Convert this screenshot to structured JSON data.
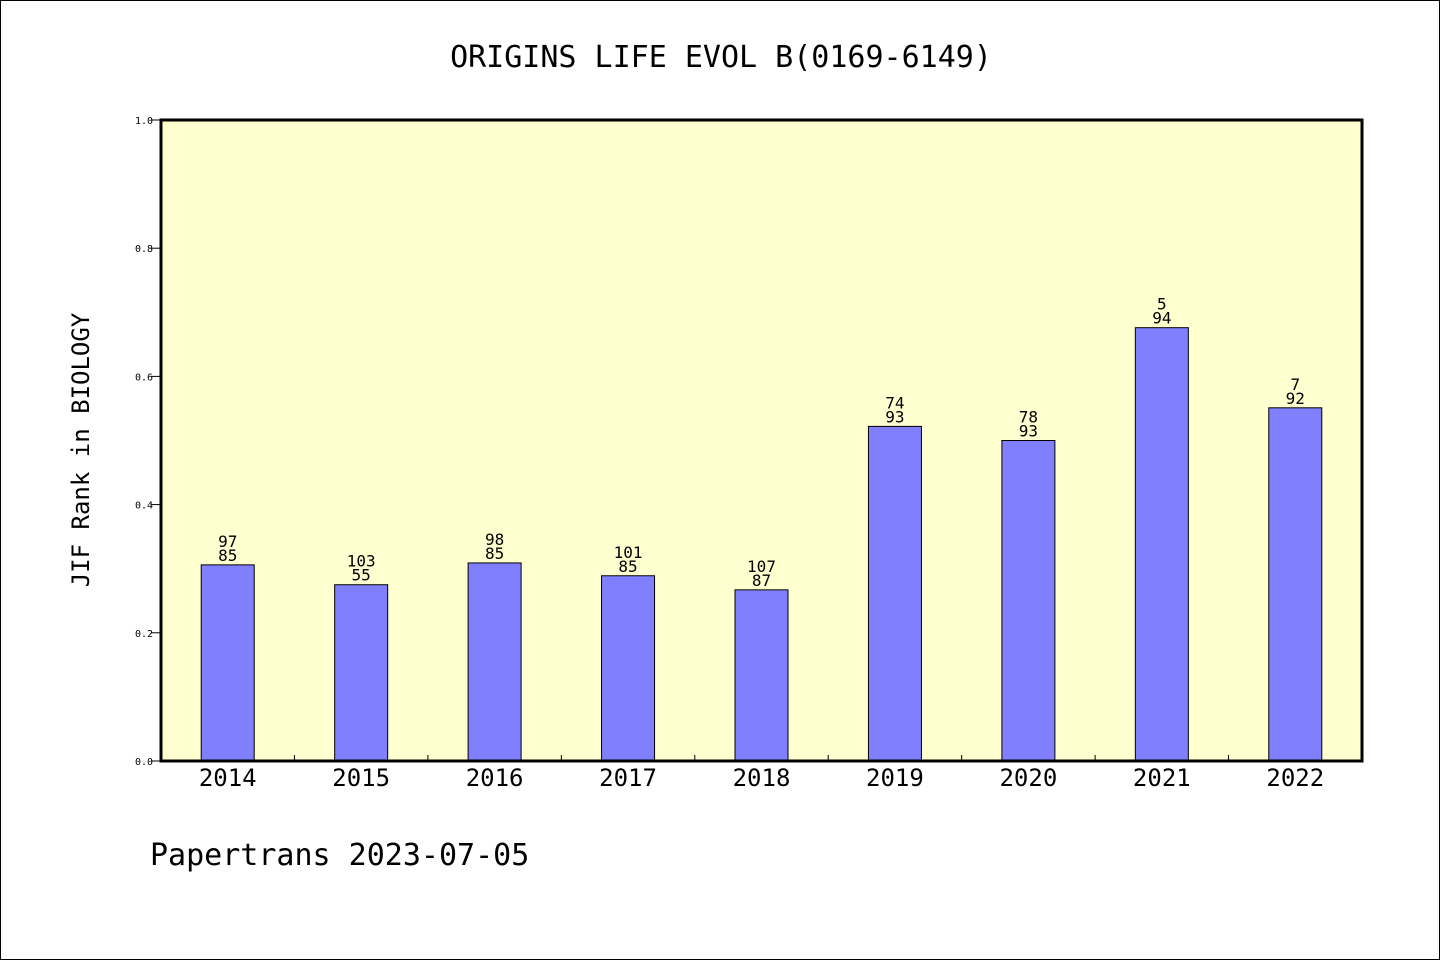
{
  "chart_data": {
    "type": "bar",
    "title": "ORIGINS LIFE EVOL B(0169-6149)",
    "ylabel": "JIF Rank in BIOLOGY",
    "xlabel": "",
    "ylim": [
      0,
      1.0
    ],
    "yticks": [
      "0.0",
      "0.2",
      "0.4",
      "0.6",
      "0.8",
      "1.0"
    ],
    "grid": false,
    "categories": [
      "2014",
      "2015",
      "2016",
      "2017",
      "2018",
      "2019",
      "2020",
      "2021",
      "2022"
    ],
    "values": [
      0.306,
      0.275,
      0.309,
      0.289,
      0.267,
      0.522,
      0.5,
      0.676,
      0.551
    ],
    "bar_labels": [
      [
        "97",
        "85"
      ],
      [
        "103",
        "55"
      ],
      [
        "98",
        "85"
      ],
      [
        "101",
        "85"
      ],
      [
        "107",
        "87"
      ],
      [
        "74",
        "93"
      ],
      [
        "78",
        "93"
      ],
      [
        "5",
        "94"
      ],
      [
        "7",
        "92"
      ]
    ],
    "colors": {
      "bar": "#8080ff",
      "plot_background": "#ffffd0",
      "axis": "#000000"
    }
  },
  "footer": "Papertrans 2023-07-05"
}
